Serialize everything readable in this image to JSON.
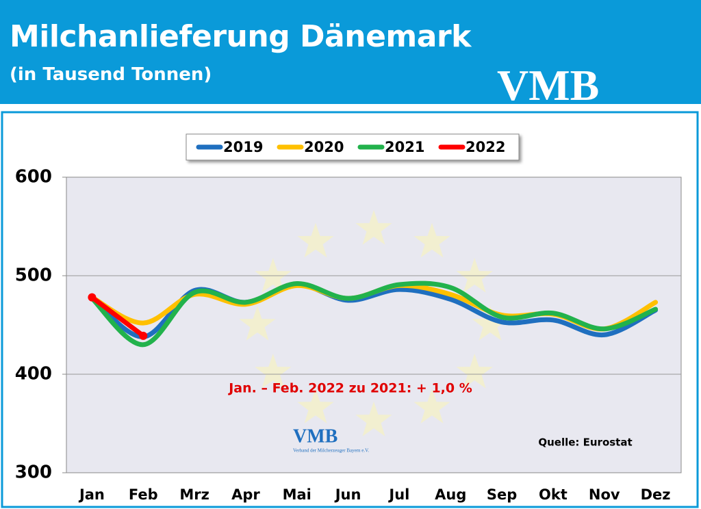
{
  "chart_data": {
    "type": "line",
    "title": "Milchanlieferung Dänemark",
    "subtitle": "(in Tausend Tonnen)",
    "logo": {
      "text": "VMB",
      "caption": "Verband der Milcherzeuger Bayern e.V."
    },
    "annotations": [
      "Jan. – Feb. 2022 zu 2021:  + 1,0 %",
      "Quelle: Eurostat"
    ],
    "categories": [
      "Jan",
      "Feb",
      "Mrz",
      "Apr",
      "Mai",
      "Jun",
      "Jul",
      "Aug",
      "Sep",
      "Okt",
      "Nov",
      "Dez"
    ],
    "series": [
      {
        "name": "2019",
        "color": "#1f6fbf",
        "values": [
          478,
          438,
          485,
          473,
          491,
          475,
          486,
          476,
          453,
          455,
          440,
          465
        ]
      },
      {
        "name": "2020",
        "color": "#ffc000",
        "values": [
          478,
          452,
          481,
          471,
          490,
          477,
          490,
          481,
          460,
          461,
          446,
          473
        ]
      },
      {
        "name": "2021",
        "color": "#22b24c",
        "values": [
          477,
          430,
          483,
          473,
          492,
          477,
          491,
          488,
          458,
          462,
          446,
          466
        ]
      },
      {
        "name": "2022",
        "color": "#ff0000",
        "values": [
          478,
          439,
          null,
          null,
          null,
          null,
          null,
          null,
          null,
          null,
          null,
          null
        ]
      }
    ],
    "ylim": [
      300,
      600
    ],
    "yticks": [
      300,
      400,
      500,
      600
    ],
    "grid": true,
    "legend": "top"
  }
}
